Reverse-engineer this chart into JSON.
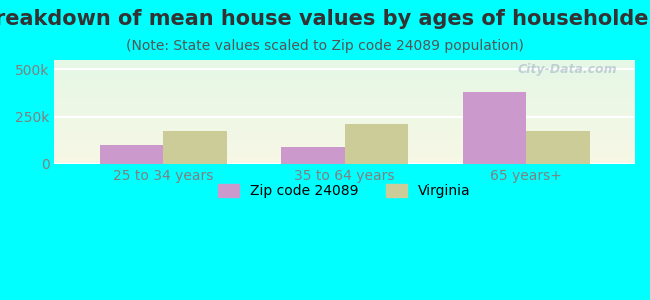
{
  "title": "Breakdown of mean house values by ages of householders",
  "subtitle": "(Note: State values scaled to Zip code 24089 population)",
  "categories": [
    "25 to 34 years",
    "35 to 64 years",
    "65 years+"
  ],
  "series": [
    {
      "name": "Zip code 24089",
      "values": [
        100000,
        90000,
        380000
      ],
      "color": "#cc99cc"
    },
    {
      "name": "Virginia",
      "values": [
        175000,
        210000,
        175000
      ],
      "color": "#cccc99"
    }
  ],
  "ylim": [
    0,
    550000
  ],
  "ytick_labels": [
    "0",
    "250k",
    "500k"
  ],
  "ytick_values": [
    0,
    250000,
    500000
  ],
  "background_color": "#00ffff",
  "watermark": "City-Data.com",
  "bar_width": 0.35,
  "title_fontsize": 15,
  "subtitle_fontsize": 10,
  "legend_fontsize": 10,
  "tick_fontsize": 10
}
